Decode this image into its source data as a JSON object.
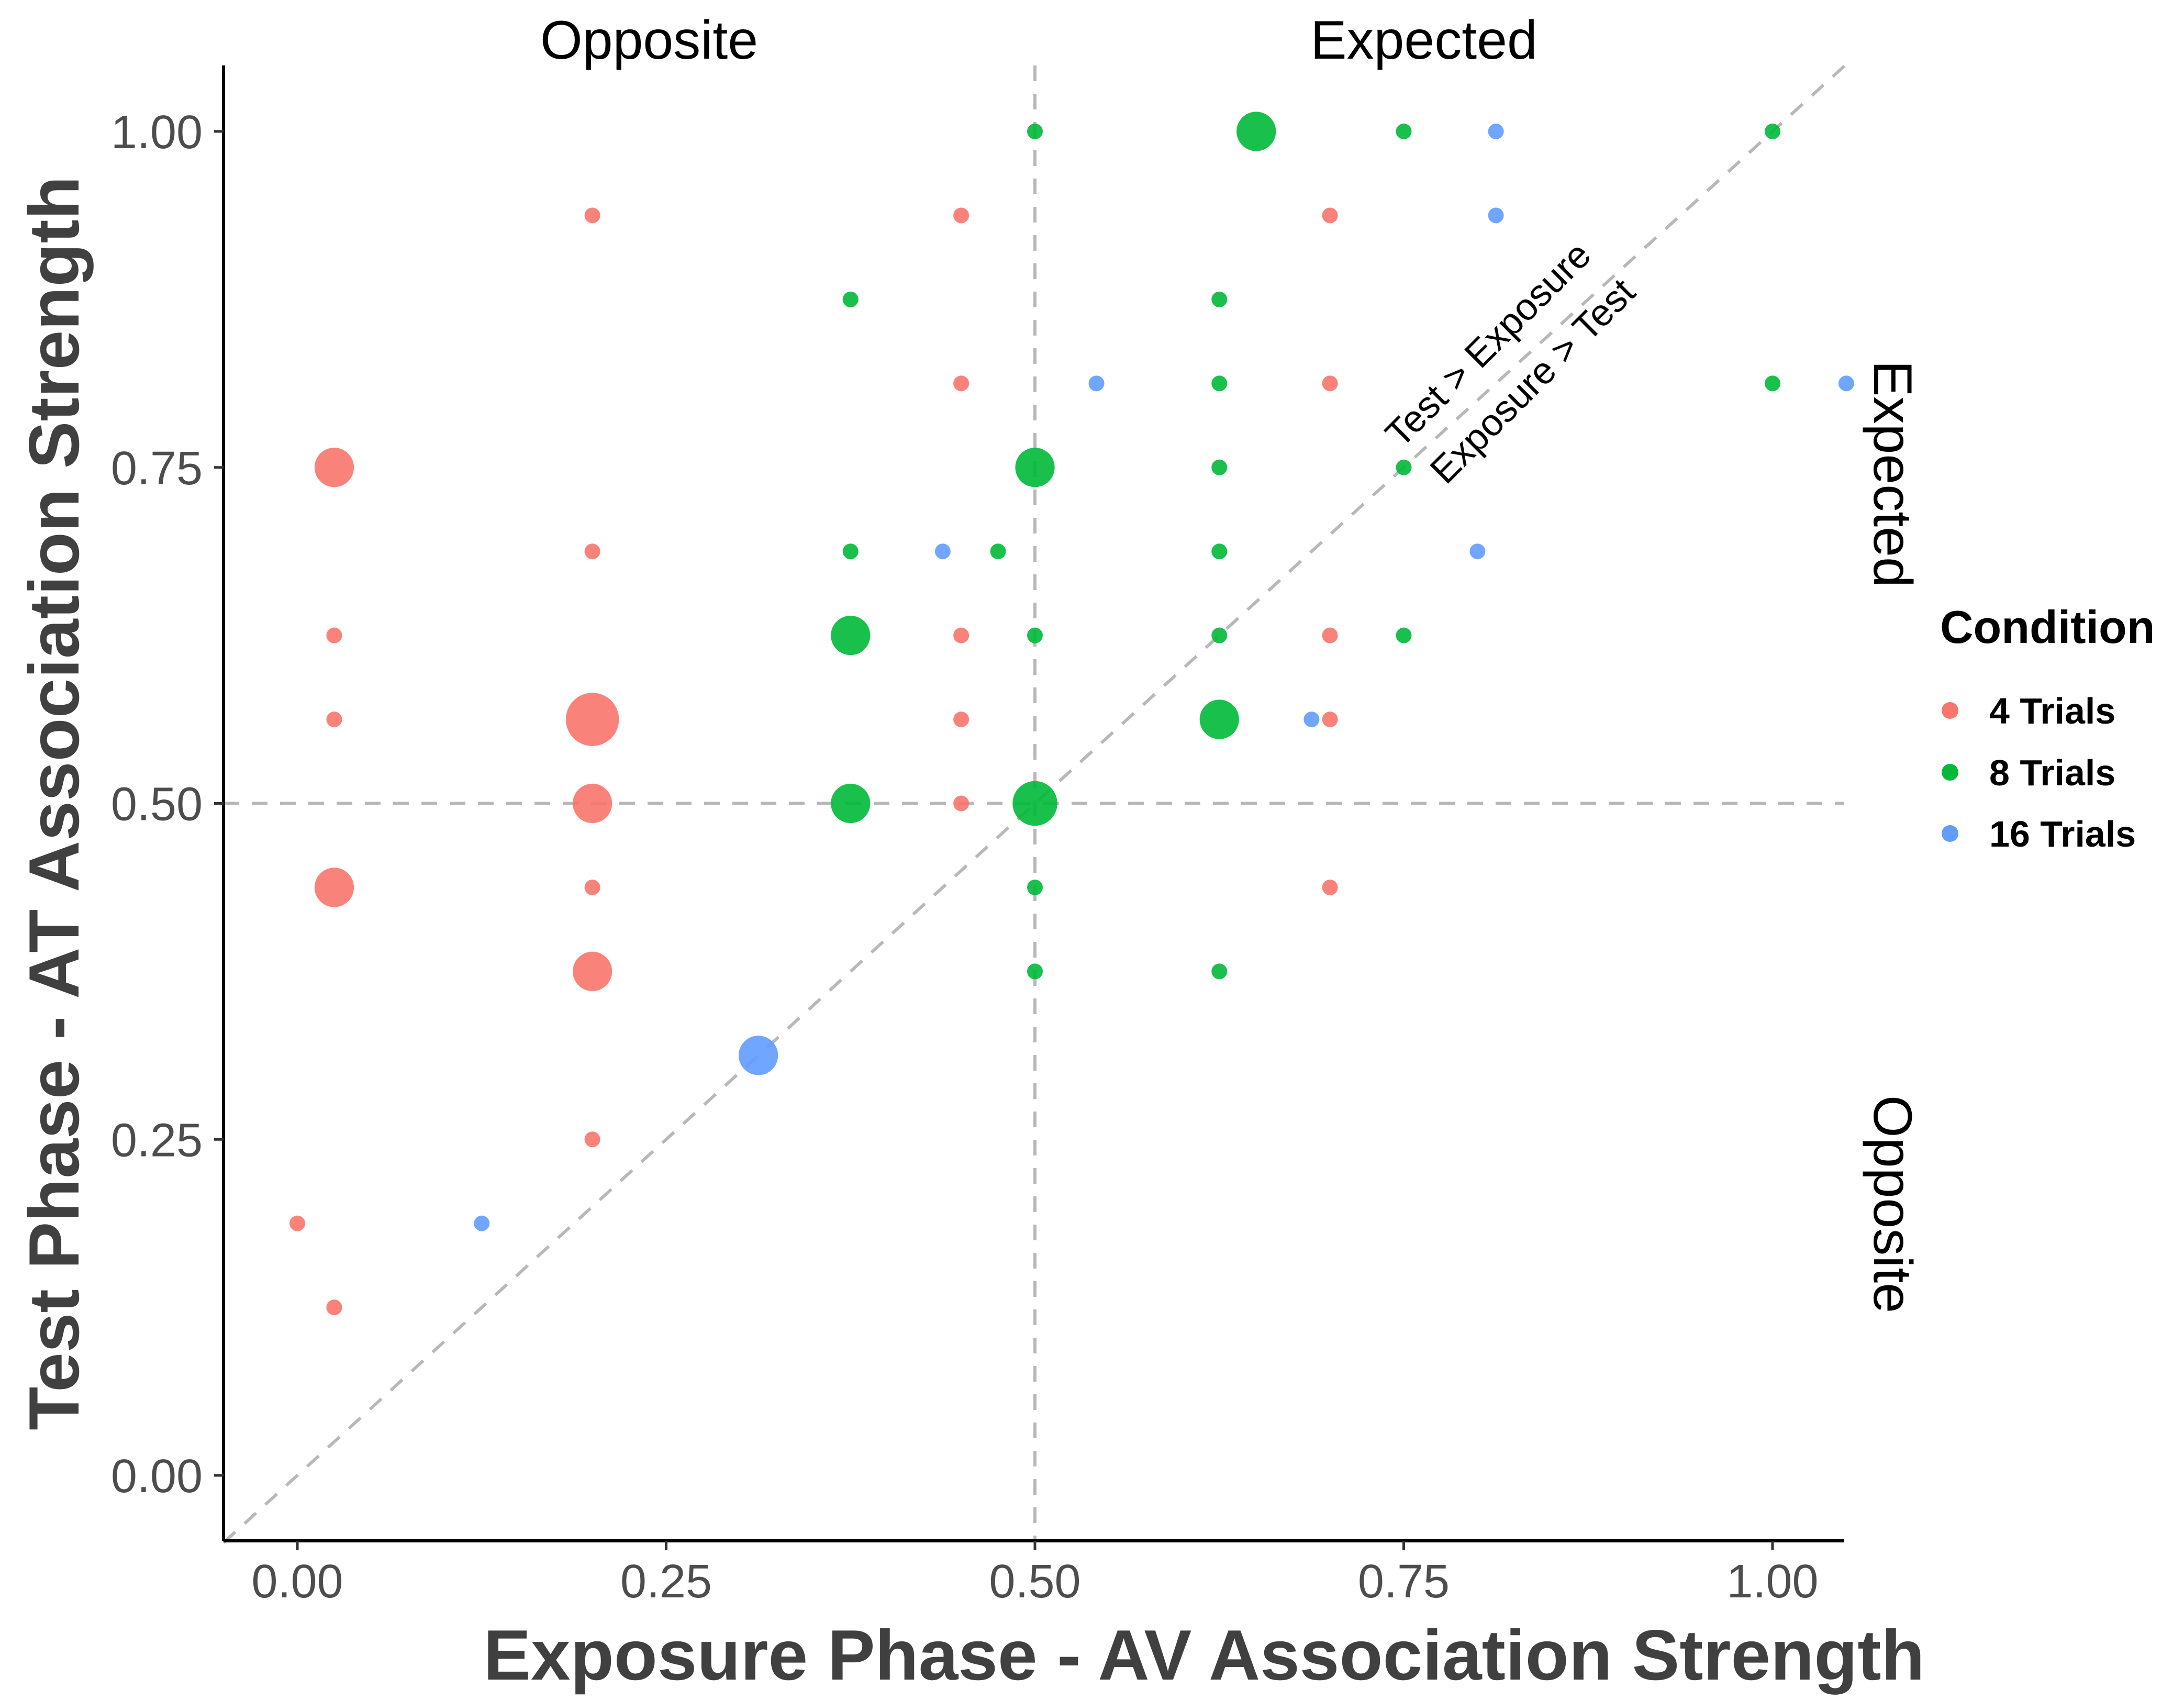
{
  "chart_data": {
    "type": "scatter",
    "title": "",
    "xlabel": "Exposure Phase - AV Association Strength",
    "ylabel": "Test Phase - AT Association Strength",
    "xlim": [
      -0.1,
      1.05
    ],
    "ylim": [
      -0.05,
      1.05
    ],
    "x_ticks": [
      "0.00",
      "0.25",
      "0.50",
      "0.75",
      "1.00"
    ],
    "y_ticks": [
      "0.00",
      "0.25",
      "0.50",
      "0.75",
      "1.00"
    ],
    "x_tick_values": [
      0,
      0.25,
      0.5,
      0.75,
      1.0
    ],
    "y_tick_values": [
      0,
      0.25,
      0.5,
      0.75,
      1.0
    ],
    "reference_lines": {
      "vertical_x": 0.5,
      "horizontal_y": 0.5,
      "diagonal": "y = x"
    },
    "top_labels": [
      "Opposite",
      "Expected"
    ],
    "right_labels": [
      "Expected",
      "Opposite"
    ],
    "diagonal_labels": [
      "Test > Exposure",
      "Exposure > Test"
    ],
    "legend": {
      "title": "Condition",
      "position": "right",
      "entries": [
        {
          "label": "4 Trials",
          "color": "#F8766D"
        },
        {
          "label": "8 Trials",
          "color": "#00BA38"
        },
        {
          "label": "16 Trials",
          "color": "#619CFF"
        }
      ]
    },
    "series": [
      {
        "name": "4 Trials",
        "color": "#F8766D",
        "points": [
          {
            "x": 0.2,
            "y": 0.9375,
            "n": 1
          },
          {
            "x": 0.45,
            "y": 0.9375,
            "n": 1
          },
          {
            "x": 0.7,
            "y": 0.9375,
            "n": 1
          },
          {
            "x": 0.45,
            "y": 0.8125,
            "n": 1
          },
          {
            "x": 0.7,
            "y": 0.8125,
            "n": 1
          },
          {
            "x": 0.025,
            "y": 0.75,
            "n": 3
          },
          {
            "x": 0.2,
            "y": 0.6875,
            "n": 1
          },
          {
            "x": 0.025,
            "y": 0.625,
            "n": 1
          },
          {
            "x": 0.45,
            "y": 0.625,
            "n": 1
          },
          {
            "x": 0.7,
            "y": 0.625,
            "n": 1
          },
          {
            "x": 0.025,
            "y": 0.5625,
            "n": 1
          },
          {
            "x": 0.2,
            "y": 0.5625,
            "n": 6
          },
          {
            "x": 0.45,
            "y": 0.5625,
            "n": 1
          },
          {
            "x": 0.7,
            "y": 0.5625,
            "n": 1
          },
          {
            "x": 0.2,
            "y": 0.5,
            "n": 3
          },
          {
            "x": 0.45,
            "y": 0.5,
            "n": 1
          },
          {
            "x": 0.025,
            "y": 0.4375,
            "n": 3
          },
          {
            "x": 0.2,
            "y": 0.4375,
            "n": 1
          },
          {
            "x": 0.7,
            "y": 0.4375,
            "n": 1
          },
          {
            "x": 0.2,
            "y": 0.375,
            "n": 3
          },
          {
            "x": 0.2,
            "y": 0.25,
            "n": 1
          },
          {
            "x": 0.0,
            "y": 0.1875,
            "n": 1
          },
          {
            "x": 0.025,
            "y": 0.125,
            "n": 1
          }
        ]
      },
      {
        "name": "8 Trials",
        "color": "#00BA38",
        "points": [
          {
            "x": 0.5,
            "y": 1.0,
            "n": 1
          },
          {
            "x": 0.65,
            "y": 1.0,
            "n": 3
          },
          {
            "x": 0.75,
            "y": 1.0,
            "n": 1
          },
          {
            "x": 1.0,
            "y": 1.0,
            "n": 1
          },
          {
            "x": 0.375,
            "y": 0.875,
            "n": 1
          },
          {
            "x": 0.625,
            "y": 0.875,
            "n": 1
          },
          {
            "x": 0.625,
            "y": 0.8125,
            "n": 1
          },
          {
            "x": 1.0,
            "y": 0.8125,
            "n": 1
          },
          {
            "x": 0.5,
            "y": 0.75,
            "n": 3
          },
          {
            "x": 0.625,
            "y": 0.75,
            "n": 1
          },
          {
            "x": 0.75,
            "y": 0.75,
            "n": 1
          },
          {
            "x": 0.375,
            "y": 0.6875,
            "n": 1
          },
          {
            "x": 0.475,
            "y": 0.6875,
            "n": 1
          },
          {
            "x": 0.625,
            "y": 0.6875,
            "n": 1
          },
          {
            "x": 0.375,
            "y": 0.625,
            "n": 3
          },
          {
            "x": 0.5,
            "y": 0.625,
            "n": 1
          },
          {
            "x": 0.625,
            "y": 0.625,
            "n": 1
          },
          {
            "x": 0.75,
            "y": 0.625,
            "n": 1
          },
          {
            "x": 0.625,
            "y": 0.5625,
            "n": 3
          },
          {
            "x": 0.375,
            "y": 0.5,
            "n": 3
          },
          {
            "x": 0.5,
            "y": 0.5,
            "n": 4
          },
          {
            "x": 0.5,
            "y": 0.4375,
            "n": 1
          },
          {
            "x": 0.5,
            "y": 0.375,
            "n": 1
          },
          {
            "x": 0.625,
            "y": 0.375,
            "n": 1
          }
        ]
      },
      {
        "name": "16 Trials",
        "color": "#619CFF",
        "points": [
          {
            "x": 0.8125,
            "y": 1.0,
            "n": 1
          },
          {
            "x": 0.8125,
            "y": 0.9375,
            "n": 1
          },
          {
            "x": 0.5417,
            "y": 0.8125,
            "n": 1
          },
          {
            "x": 1.05,
            "y": 0.8125,
            "n": 1
          },
          {
            "x": 0.4375,
            "y": 0.6875,
            "n": 1
          },
          {
            "x": 0.8,
            "y": 0.6875,
            "n": 1
          },
          {
            "x": 0.6875,
            "y": 0.5625,
            "n": 1
          },
          {
            "x": 0.3125,
            "y": 0.3125,
            "n": 3
          },
          {
            "x": 0.125,
            "y": 0.1875,
            "n": 1
          }
        ]
      }
    ]
  }
}
